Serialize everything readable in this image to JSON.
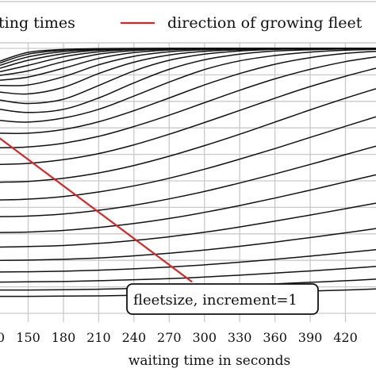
{
  "chart_data": {
    "type": "line",
    "xlabel": "waiting time in seconds",
    "ylabel": "",
    "xlim": [
      126,
      446
    ],
    "ylim": [
      0,
      1.0
    ],
    "x_ticks": [
      150,
      180,
      210,
      240,
      270,
      300,
      330,
      360,
      390,
      420
    ],
    "x_tick_labels": [
      "150",
      "180",
      "210",
      "240",
      "270",
      "300",
      "330",
      "360",
      "390",
      "420"
    ],
    "grid": true,
    "legend": {
      "placement": "top",
      "entries": [
        {
          "label": "ting times",
          "color": "#111111"
        },
        {
          "label": "direction of growing fleet",
          "color": "#d62728"
        }
      ]
    },
    "annotation": {
      "text": "fleetsize, increment=1"
    },
    "direction_arrow": {
      "color": "#d62728",
      "from": {
        "x": 126,
        "y": 0.66
      },
      "to": {
        "x": 289,
        "y": 0.12
      }
    },
    "series": [
      {
        "x": [
          126,
          150,
          180,
          210,
          240,
          270,
          300,
          330,
          360,
          390,
          420,
          446
        ],
        "values": [
          0.952,
          0.985,
          0.996,
          0.999,
          1.0,
          1.0,
          1.0,
          1.0,
          1.0,
          1.0,
          1.0,
          1.0
        ]
      },
      {
        "x": [
          126,
          150,
          180,
          210,
          240,
          270,
          300,
          330,
          360,
          390,
          420,
          446
        ],
        "values": [
          0.945,
          0.978,
          0.993,
          0.998,
          0.999,
          1.0,
          1.0,
          1.0,
          1.0,
          1.0,
          1.0,
          1.0
        ]
      },
      {
        "x": [
          126,
          150,
          180,
          210,
          240,
          270,
          300,
          330,
          360,
          390,
          420,
          446
        ],
        "values": [
          0.936,
          0.968,
          0.988,
          0.996,
          0.999,
          1.0,
          1.0,
          1.0,
          1.0,
          1.0,
          1.0,
          1.0
        ]
      },
      {
        "x": [
          126,
          150,
          180,
          210,
          240,
          270,
          300,
          330,
          360,
          390,
          420,
          446
        ],
        "values": [
          0.925,
          0.955,
          0.98,
          0.993,
          0.998,
          0.999,
          1.0,
          1.0,
          1.0,
          1.0,
          1.0,
          1.0
        ]
      },
      {
        "x": [
          126,
          150,
          180,
          210,
          240,
          270,
          300,
          330,
          360,
          390,
          420,
          446
        ],
        "values": [
          0.912,
          0.936,
          0.968,
          0.987,
          0.996,
          0.999,
          1.0,
          1.0,
          1.0,
          1.0,
          1.0,
          1.0
        ]
      },
      {
        "x": [
          126,
          150,
          180,
          210,
          240,
          270,
          300,
          330,
          360,
          390,
          420,
          446
        ],
        "values": [
          0.898,
          0.915,
          0.95,
          0.978,
          0.992,
          0.997,
          0.999,
          1.0,
          1.0,
          1.0,
          1.0,
          1.0
        ]
      },
      {
        "x": [
          126,
          150,
          180,
          210,
          240,
          270,
          300,
          330,
          360,
          390,
          420,
          446
        ],
        "values": [
          0.88,
          0.892,
          0.925,
          0.962,
          0.984,
          0.994,
          0.998,
          0.999,
          1.0,
          1.0,
          1.0,
          1.0
        ]
      },
      {
        "x": [
          126,
          150,
          180,
          210,
          240,
          270,
          300,
          330,
          360,
          390,
          420,
          446
        ],
        "values": [
          0.86,
          0.862,
          0.893,
          0.938,
          0.97,
          0.987,
          0.995,
          0.998,
          0.999,
          1.0,
          1.0,
          1.0
        ]
      },
      {
        "x": [
          126,
          150,
          180,
          210,
          240,
          270,
          300,
          330,
          360,
          390,
          420,
          446
        ],
        "values": [
          0.835,
          0.828,
          0.853,
          0.905,
          0.948,
          0.975,
          0.989,
          0.995,
          0.998,
          0.999,
          1.0,
          1.0
        ]
      },
      {
        "x": [
          126,
          150,
          180,
          210,
          240,
          270,
          300,
          330,
          360,
          390,
          420,
          446
        ],
        "values": [
          0.805,
          0.792,
          0.808,
          0.86,
          0.915,
          0.955,
          0.978,
          0.99,
          0.996,
          0.998,
          0.999,
          1.0
        ]
      },
      {
        "x": [
          126,
          150,
          180,
          210,
          240,
          270,
          300,
          330,
          360,
          390,
          420,
          446
        ],
        "values": [
          0.77,
          0.758,
          0.77,
          0.813,
          0.87,
          0.921,
          0.957,
          0.978,
          0.99,
          0.995,
          0.998,
          0.999
        ]
      },
      {
        "x": [
          126,
          150,
          180,
          210,
          240,
          270,
          300,
          330,
          360,
          390,
          420,
          446
        ],
        "values": [
          0.728,
          0.722,
          0.737,
          0.77,
          0.82,
          0.873,
          0.92,
          0.953,
          0.973,
          0.986,
          0.993,
          0.996
        ]
      },
      {
        "x": [
          126,
          150,
          180,
          210,
          240,
          270,
          300,
          330,
          360,
          390,
          420,
          446
        ],
        "values": [
          0.68,
          0.68,
          0.694,
          0.723,
          0.765,
          0.813,
          0.862,
          0.905,
          0.94,
          0.965,
          0.981,
          0.989
        ]
      },
      {
        "x": [
          126,
          150,
          180,
          210,
          240,
          270,
          300,
          330,
          360,
          390,
          420,
          446
        ],
        "values": [
          0.625,
          0.628,
          0.642,
          0.668,
          0.705,
          0.748,
          0.795,
          0.842,
          0.885,
          0.921,
          0.95,
          0.968
        ]
      },
      {
        "x": [
          126,
          150,
          180,
          210,
          240,
          270,
          300,
          330,
          360,
          390,
          420,
          446
        ],
        "values": [
          0.562,
          0.566,
          0.58,
          0.603,
          0.636,
          0.676,
          0.72,
          0.766,
          0.812,
          0.856,
          0.895,
          0.925
        ]
      },
      {
        "x": [
          126,
          150,
          180,
          210,
          240,
          270,
          300,
          330,
          360,
          390,
          420,
          446
        ],
        "values": [
          0.495,
          0.498,
          0.51,
          0.53,
          0.558,
          0.593,
          0.633,
          0.676,
          0.722,
          0.768,
          0.812,
          0.848
        ]
      },
      {
        "x": [
          126,
          150,
          180,
          210,
          240,
          270,
          300,
          330,
          360,
          390,
          420,
          446
        ],
        "values": [
          0.428,
          0.431,
          0.441,
          0.458,
          0.481,
          0.51,
          0.544,
          0.582,
          0.622,
          0.664,
          0.706,
          0.742
        ]
      },
      {
        "x": [
          126,
          150,
          180,
          210,
          240,
          270,
          300,
          330,
          360,
          390,
          420,
          446
        ],
        "values": [
          0.365,
          0.367,
          0.375,
          0.389,
          0.408,
          0.432,
          0.46,
          0.492,
          0.526,
          0.562,
          0.599,
          0.631
        ]
      },
      {
        "x": [
          126,
          150,
          180,
          210,
          240,
          270,
          300,
          330,
          360,
          390,
          420,
          446
        ],
        "values": [
          0.305,
          0.307,
          0.313,
          0.324,
          0.339,
          0.358,
          0.381,
          0.407,
          0.435,
          0.465,
          0.496,
          0.523
        ]
      },
      {
        "x": [
          126,
          150,
          180,
          210,
          240,
          270,
          300,
          330,
          360,
          390,
          420,
          446
        ],
        "values": [
          0.25,
          0.252,
          0.256,
          0.264,
          0.275,
          0.289,
          0.306,
          0.326,
          0.348,
          0.371,
          0.395,
          0.416
        ]
      },
      {
        "x": [
          126,
          150,
          180,
          210,
          240,
          270,
          300,
          330,
          360,
          390,
          420,
          446
        ],
        "values": [
          0.2,
          0.201,
          0.204,
          0.209,
          0.217,
          0.227,
          0.239,
          0.253,
          0.269,
          0.286,
          0.304,
          0.32
        ]
      },
      {
        "x": [
          126,
          150,
          180,
          210,
          240,
          270,
          300,
          330,
          360,
          390,
          420,
          446
        ],
        "values": [
          0.156,
          0.157,
          0.159,
          0.163,
          0.168,
          0.175,
          0.183,
          0.193,
          0.204,
          0.216,
          0.229,
          0.24
        ]
      },
      {
        "x": [
          126,
          150,
          180,
          210,
          240,
          270,
          300,
          330,
          360,
          390,
          420,
          446
        ],
        "values": [
          0.118,
          0.119,
          0.12,
          0.123,
          0.127,
          0.131,
          0.137,
          0.144,
          0.152,
          0.16,
          0.169,
          0.177
        ]
      },
      {
        "x": [
          126,
          150,
          180,
          210,
          240,
          270,
          300,
          330,
          360,
          390,
          420,
          446
        ],
        "values": [
          0.088,
          0.088,
          0.089,
          0.091,
          0.094,
          0.097,
          0.101,
          0.106,
          0.111,
          0.117,
          0.123,
          0.129
        ]
      },
      {
        "x": [
          126,
          150,
          180,
          210,
          240,
          270,
          300,
          330,
          360,
          390,
          420,
          446
        ],
        "values": [
          0.064,
          0.064,
          0.065,
          0.066,
          0.068,
          0.07,
          0.073,
          0.076,
          0.08,
          0.084,
          0.088,
          0.092
        ]
      }
    ]
  }
}
